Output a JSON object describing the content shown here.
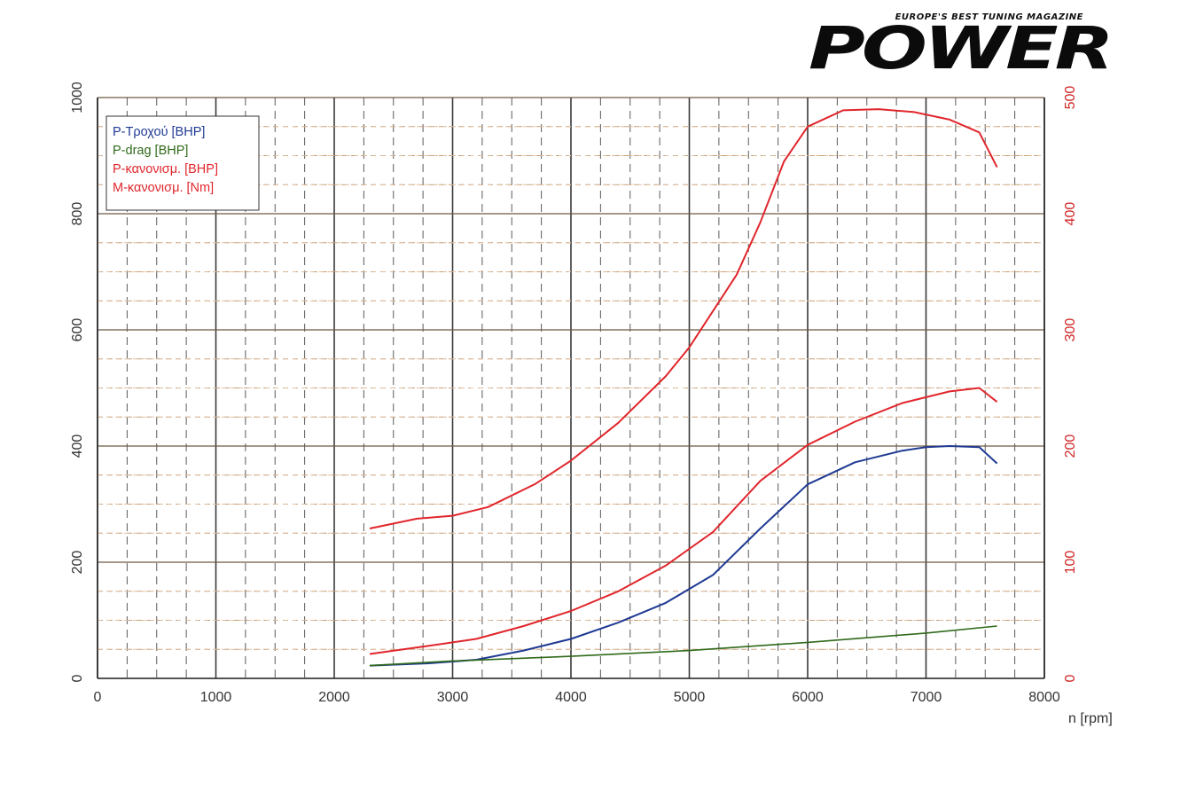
{
  "brand": {
    "tagline": "EUROPE'S BEST TUNING MAGAZINE",
    "logo": "POWER"
  },
  "chart_data": {
    "type": "line",
    "xlabel": "n [rpm]",
    "xlim": [
      0,
      8000
    ],
    "x_ticks": [
      "0",
      "1000",
      "2000",
      "3000",
      "4000",
      "5000",
      "6000",
      "7000",
      "8000"
    ],
    "ylim": [
      0,
      1000
    ],
    "y_ticks": [
      "0",
      "200",
      "400",
      "600",
      "800",
      "1000"
    ],
    "y2lim": [
      0,
      500
    ],
    "y2_ticks": [
      "0",
      "100",
      "200",
      "300",
      "400",
      "500"
    ],
    "grid": true,
    "legend_position": "top-left",
    "series": [
      {
        "name": "P-Τροχού [BHP]",
        "axis": "right",
        "color": "#1f3a93",
        "x": [
          2300,
          2800,
          3200,
          3600,
          4000,
          4400,
          4800,
          5200,
          5600,
          6000,
          6400,
          6800,
          7000,
          7200,
          7450,
          7600
        ],
        "values": [
          11,
          13,
          16,
          24,
          34,
          48,
          65,
          89,
          129,
          167,
          186,
          196,
          199,
          200,
          199,
          185
        ]
      },
      {
        "name": "P-drag [BHP]",
        "axis": "right",
        "color": "#2f6a1a",
        "x": [
          2300,
          3000,
          4000,
          5000,
          6000,
          7000,
          7600
        ],
        "values": [
          11,
          15,
          19,
          24,
          31,
          39,
          45
        ]
      },
      {
        "name": "P-κανονισμ. [BHP]",
        "axis": "right",
        "color": "#e0262c",
        "x": [
          2300,
          2800,
          3200,
          3600,
          4000,
          4400,
          4800,
          5200,
          5600,
          6000,
          6400,
          6800,
          7200,
          7450,
          7600
        ],
        "values": [
          21,
          28,
          34,
          45,
          58,
          75,
          97,
          126,
          170,
          201,
          221,
          237,
          247,
          250,
          238
        ]
      },
      {
        "name": "M-κανονισμ. [Nm]",
        "axis": "left",
        "color": "#e0262c",
        "x": [
          2300,
          2700,
          3000,
          3300,
          3700,
          4000,
          4400,
          4800,
          5000,
          5400,
          5600,
          5800,
          6000,
          6300,
          6600,
          6900,
          7200,
          7450,
          7600
        ],
        "values": [
          258,
          275,
          280,
          295,
          335,
          375,
          440,
          520,
          570,
          695,
          785,
          890,
          950,
          978,
          980,
          975,
          962,
          940,
          880
        ]
      }
    ]
  }
}
